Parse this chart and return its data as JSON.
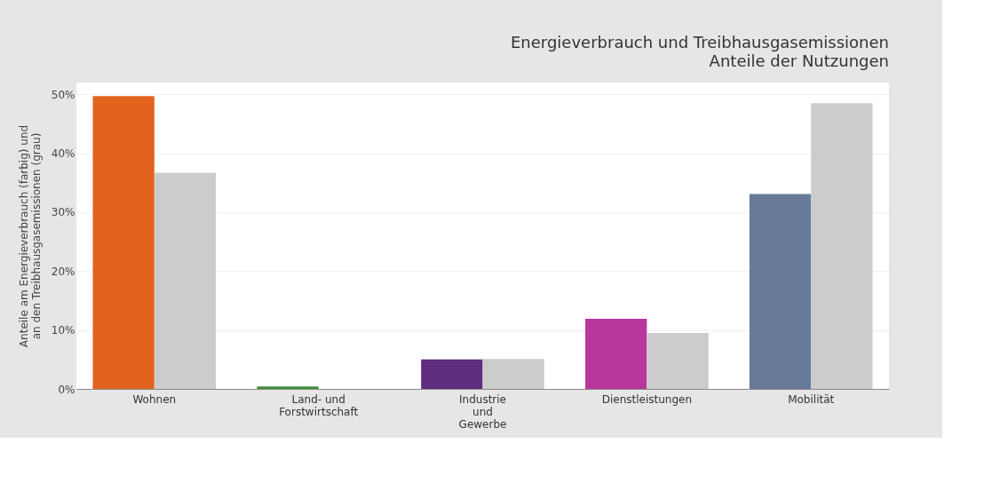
{
  "chart_data": {
    "type": "bar",
    "title": "Energieverbrauch und Treibhausgasemissionen",
    "subtitle": "Anteile der Nutzungen",
    "ylabel": "Anteile am Energieverbrauch (farbig) und\nan den Treibhausgasemissionen (grau)",
    "categories": [
      "Wohnen",
      "Land- und\nForstwirtschaft",
      "Industrie\nund\nGewerbe",
      "Dienstleistungen",
      "Mobilität"
    ],
    "series": [
      {
        "colors": [
          "#e2631e",
          "#3f8f3f",
          "#5e2d7e",
          "#b9369e",
          "#687a9a"
        ],
        "values": [
          49.7,
          0.4,
          5.0,
          11.9,
          33.1
        ]
      },
      {
        "color": "#cccccc",
        "values": [
          36.7,
          null,
          5.1,
          9.5,
          48.5
        ]
      }
    ],
    "ylim": [
      0,
      52
    ],
    "yticks": [
      {
        "value": 0,
        "label": "0%"
      },
      {
        "value": 10,
        "label": "10%"
      },
      {
        "value": 20,
        "label": "20%"
      },
      {
        "value": 30,
        "label": "30%"
      },
      {
        "value": 40,
        "label": "40%"
      },
      {
        "value": 50,
        "label": "50%"
      }
    ],
    "grid": "y"
  }
}
